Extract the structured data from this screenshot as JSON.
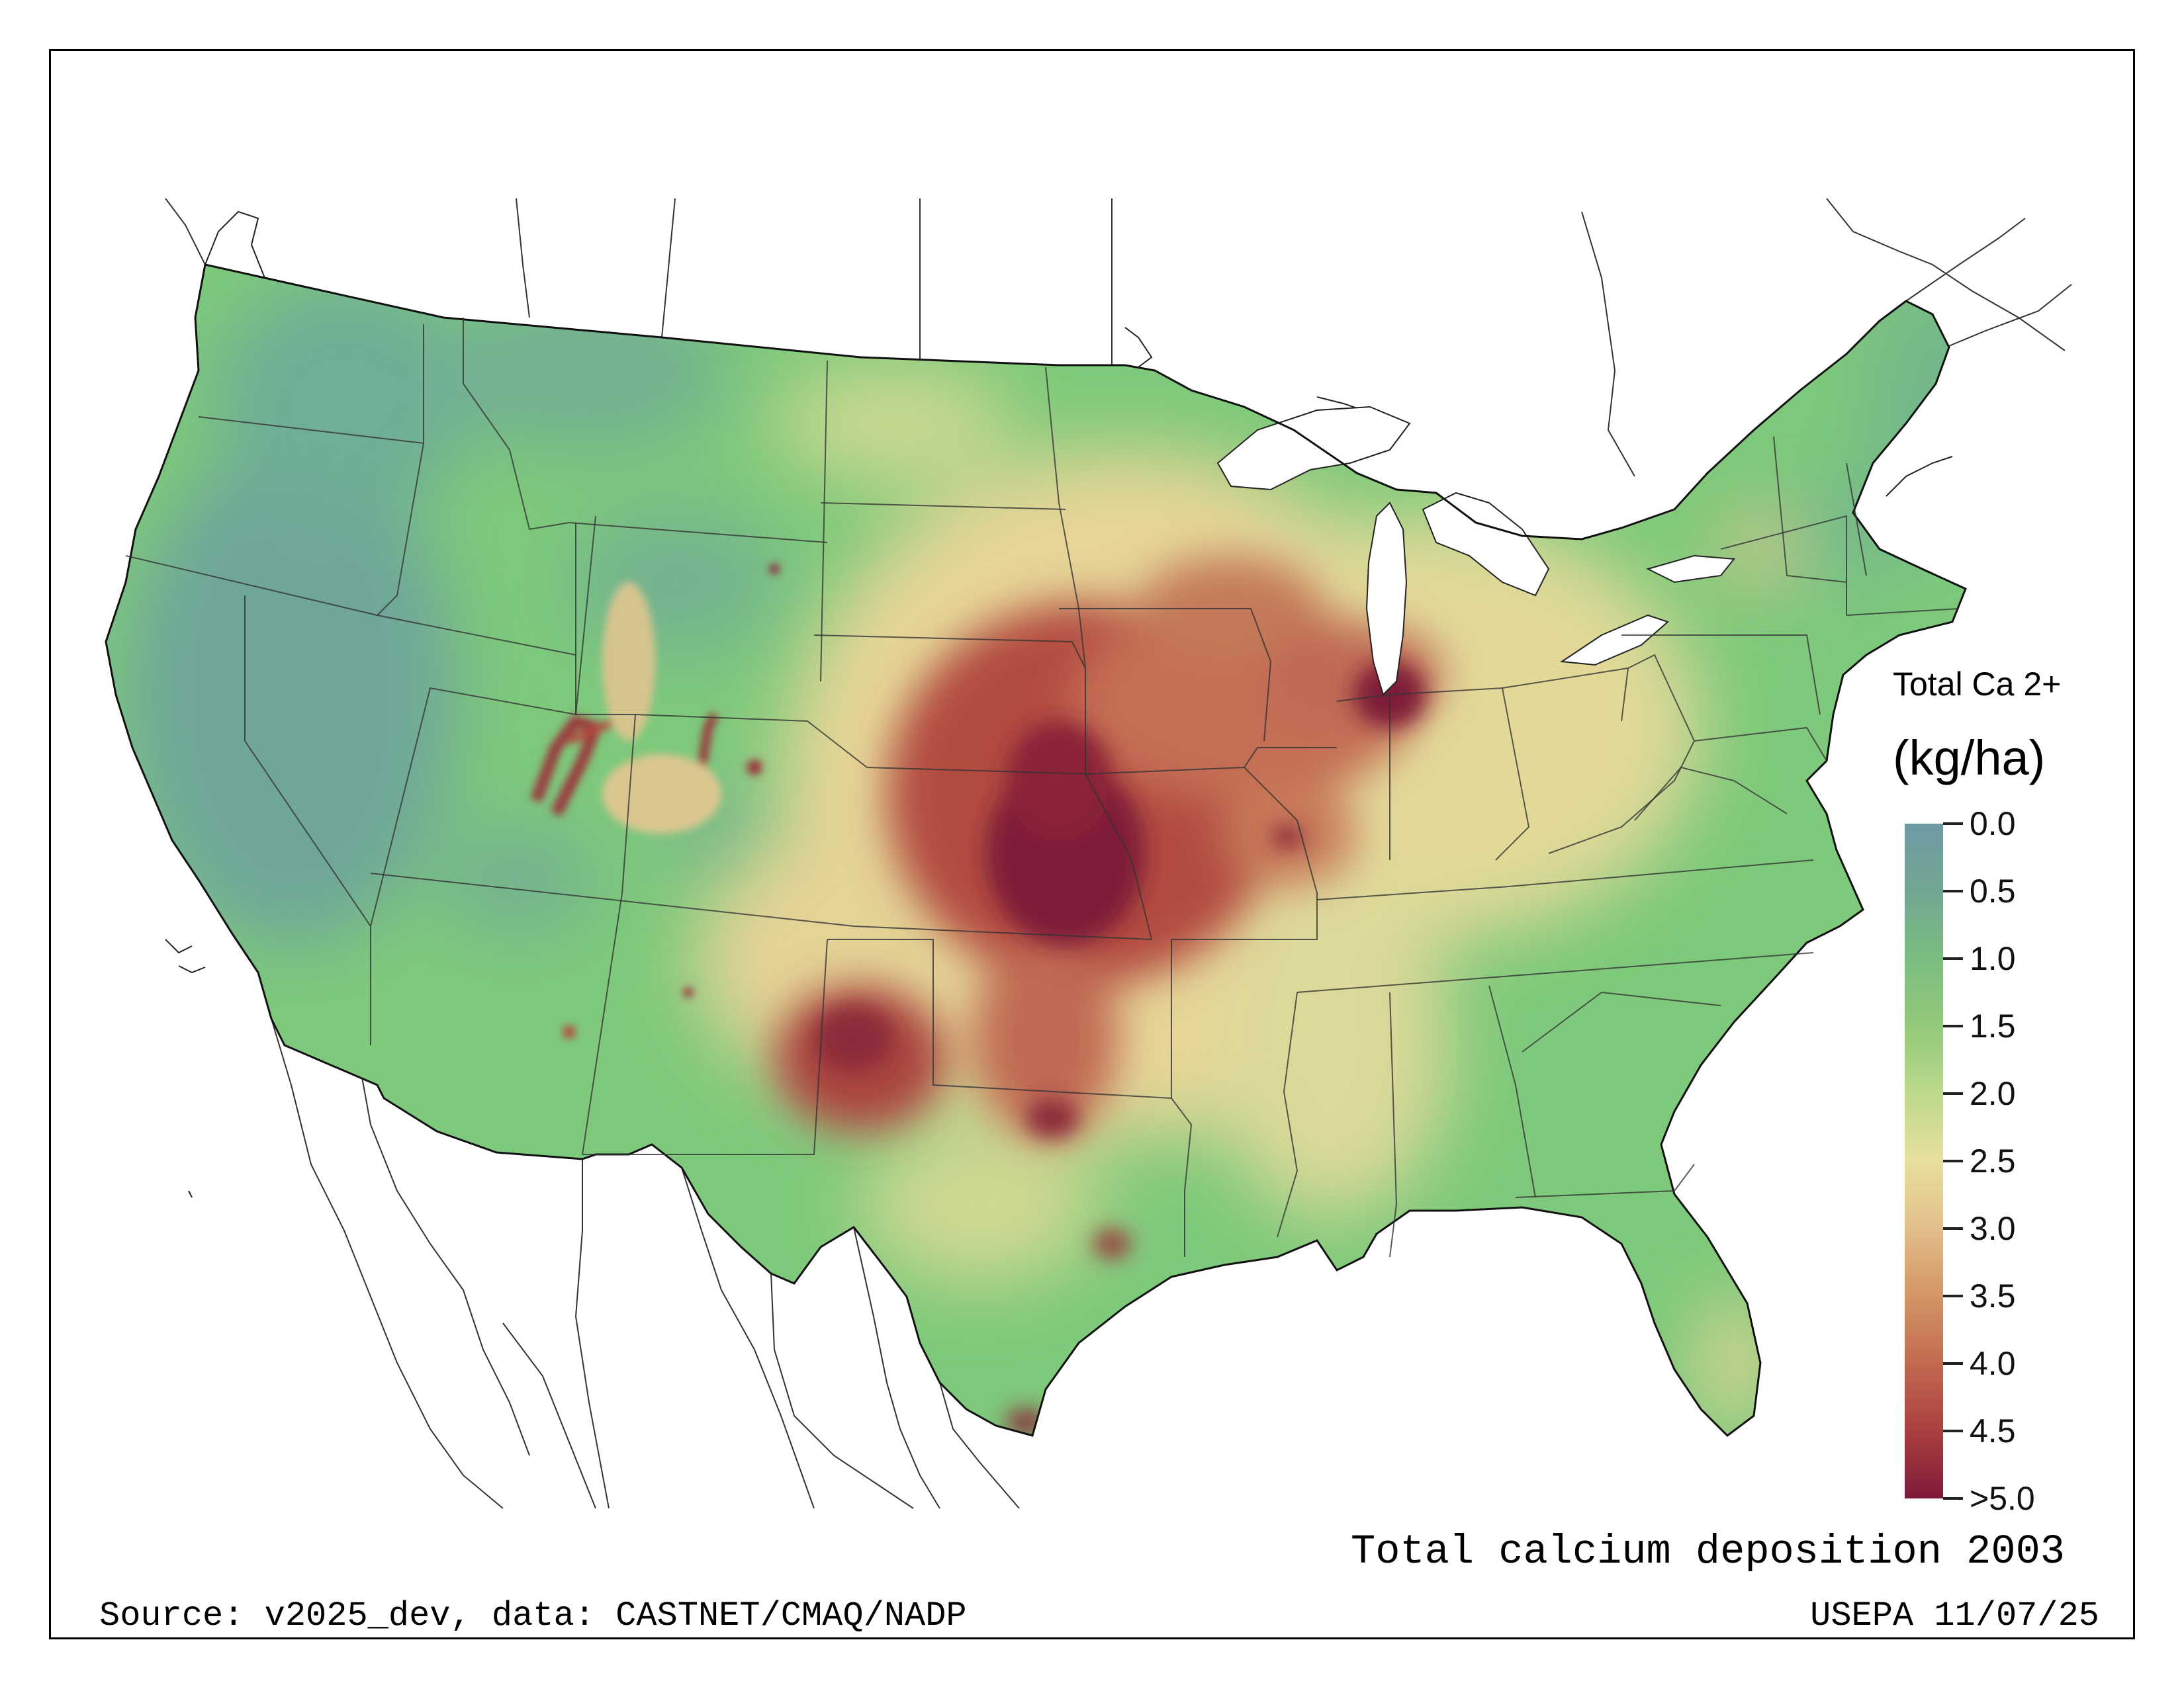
{
  "map": {
    "title": "Total calcium deposition 2003",
    "source": "Source: v2025_dev, data: CASTNET/CMAQ/NADP",
    "agency": "USEPA 11/07/25"
  },
  "legend": {
    "title": "Total Ca 2+",
    "units": "(kg/ha)",
    "ticks": [
      "0.0",
      "0.5",
      "1.0",
      "1.5",
      "2.0",
      "2.5",
      "3.0",
      "3.5",
      "4.0",
      "4.5",
      ">5.0"
    ],
    "colors": [
      "#6f9aa6",
      "#72a792",
      "#7bbd7f",
      "#93c97a",
      "#bcd98c",
      "#e8e09e",
      "#e2be8a",
      "#d39566",
      "#c26a50",
      "#aa3f3f",
      "#7e1a38"
    ]
  },
  "colors": {
    "base_green": "#7bc978",
    "west_teal": "#72ad96",
    "high_maroon": "#7e1a38",
    "mid_red": "#b04a3f",
    "tan": "#e6d597"
  }
}
